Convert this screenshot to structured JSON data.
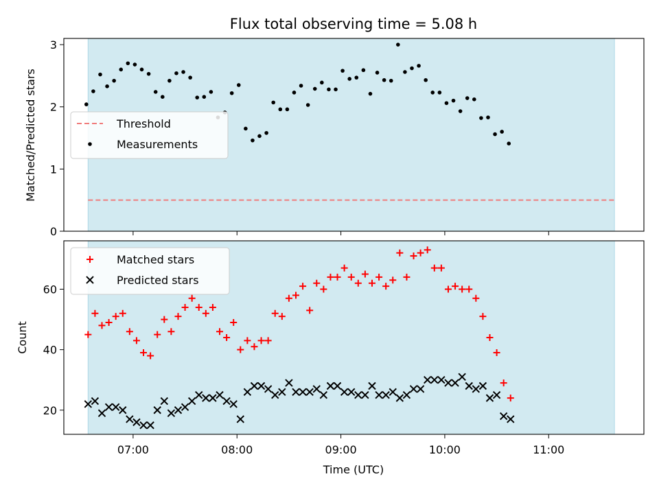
{
  "chart_data": [
    {
      "type": "scatter",
      "title": "Flux total observing time = 5.08 h",
      "ylabel": "Matched/Predicted stars",
      "xlabel": "",
      "ylim": [
        0,
        3.1
      ],
      "yticks": [
        0,
        1,
        2,
        3
      ],
      "xlim": [
        "06:20",
        "11:55"
      ],
      "xticks": [
        "07:00",
        "08:00",
        "09:00",
        "10:00",
        "11:00"
      ],
      "x_tick_labels_shown": false,
      "shaded_region": [
        "06:34",
        "11:38"
      ],
      "grid": false,
      "legend_position": "center-left",
      "threshold": {
        "name": "Threshold",
        "value": 0.5,
        "x_range": [
          "06:34",
          "11:38"
        ],
        "color": "#f07b7b",
        "style": "dashed"
      },
      "series": [
        {
          "name": "Measurements",
          "color": "#000000",
          "marker": "dot",
          "points": [
            [
              "06:33",
              2.04
            ],
            [
              "06:37",
              2.25
            ],
            [
              "06:41",
              2.52
            ],
            [
              "06:45",
              2.33
            ],
            [
              "06:49",
              2.42
            ],
            [
              "06:53",
              2.6
            ],
            [
              "06:57",
              2.7
            ],
            [
              "07:01",
              2.68
            ],
            [
              "07:05",
              2.6
            ],
            [
              "07:09",
              2.53
            ],
            [
              "07:13",
              2.24
            ],
            [
              "07:17",
              2.16
            ],
            [
              "07:21",
              2.42
            ],
            [
              "07:25",
              2.54
            ],
            [
              "07:29",
              2.56
            ],
            [
              "07:33",
              2.47
            ],
            [
              "07:37",
              2.15
            ],
            [
              "07:41",
              2.16
            ],
            [
              "07:45",
              2.24
            ],
            [
              "07:49",
              1.83
            ],
            [
              "07:53",
              1.91
            ],
            [
              "07:57",
              2.22
            ],
            [
              "08:01",
              2.35
            ],
            [
              "08:05",
              1.65
            ],
            [
              "08:09",
              1.46
            ],
            [
              "08:13",
              1.53
            ],
            [
              "08:17",
              1.58
            ],
            [
              "08:21",
              2.07
            ],
            [
              "08:25",
              1.96
            ],
            [
              "08:29",
              1.96
            ],
            [
              "08:33",
              2.23
            ],
            [
              "08:37",
              2.34
            ],
            [
              "08:41",
              2.03
            ],
            [
              "08:45",
              2.29
            ],
            [
              "08:49",
              2.39
            ],
            [
              "08:53",
              2.28
            ],
            [
              "08:57",
              2.28
            ],
            [
              "09:01",
              2.58
            ],
            [
              "09:05",
              2.45
            ],
            [
              "09:09",
              2.47
            ],
            [
              "09:13",
              2.59
            ],
            [
              "09:17",
              2.21
            ],
            [
              "09:21",
              2.55
            ],
            [
              "09:25",
              2.43
            ],
            [
              "09:29",
              2.42
            ],
            [
              "09:33",
              3.0
            ],
            [
              "09:37",
              2.56
            ],
            [
              "09:41",
              2.62
            ],
            [
              "09:45",
              2.66
            ],
            [
              "09:49",
              2.43
            ],
            [
              "09:53",
              2.23
            ],
            [
              "09:57",
              2.23
            ],
            [
              "10:01",
              2.06
            ],
            [
              "10:05",
              2.1
            ],
            [
              "10:09",
              1.93
            ],
            [
              "10:13",
              2.14
            ],
            [
              "10:17",
              2.12
            ],
            [
              "10:21",
              1.82
            ],
            [
              "10:25",
              1.83
            ],
            [
              "10:29",
              1.56
            ],
            [
              "10:33",
              1.6
            ],
            [
              "10:37",
              1.41
            ]
          ]
        }
      ]
    },
    {
      "type": "scatter",
      "title": "",
      "xlabel": "Time (UTC)",
      "ylabel": "Count",
      "ylim": [
        12,
        76
      ],
      "yticks": [
        20,
        40,
        60
      ],
      "xlim": [
        "06:20",
        "11:55"
      ],
      "xticks": [
        "07:00",
        "08:00",
        "09:00",
        "10:00",
        "11:00"
      ],
      "shaded_region": [
        "06:34",
        "11:38"
      ],
      "grid": false,
      "legend_position": "top-left",
      "series": [
        {
          "name": "Matched stars",
          "color": "#ff0000",
          "marker": "plus",
          "points": [
            [
              "06:34",
              45
            ],
            [
              "06:38",
              52
            ],
            [
              "06:42",
              48
            ],
            [
              "06:46",
              49
            ],
            [
              "06:50",
              51
            ],
            [
              "06:54",
              52
            ],
            [
              "06:58",
              46
            ],
            [
              "07:02",
              43
            ],
            [
              "07:06",
              39
            ],
            [
              "07:10",
              38
            ],
            [
              "07:14",
              45
            ],
            [
              "07:18",
              50
            ],
            [
              "07:22",
              46
            ],
            [
              "07:26",
              51
            ],
            [
              "07:30",
              54
            ],
            [
              "07:34",
              57
            ],
            [
              "07:38",
              54
            ],
            [
              "07:42",
              52
            ],
            [
              "07:46",
              54
            ],
            [
              "07:50",
              46
            ],
            [
              "07:54",
              44
            ],
            [
              "07:58",
              49
            ],
            [
              "08:02",
              40
            ],
            [
              "08:06",
              43
            ],
            [
              "08:10",
              41
            ],
            [
              "08:14",
              43
            ],
            [
              "08:18",
              43
            ],
            [
              "08:22",
              52
            ],
            [
              "08:26",
              51
            ],
            [
              "08:30",
              57
            ],
            [
              "08:34",
              58
            ],
            [
              "08:38",
              61
            ],
            [
              "08:42",
              53
            ],
            [
              "08:46",
              62
            ],
            [
              "08:50",
              60
            ],
            [
              "08:54",
              64
            ],
            [
              "08:58",
              64
            ],
            [
              "09:02",
              67
            ],
            [
              "09:06",
              64
            ],
            [
              "09:10",
              62
            ],
            [
              "09:14",
              65
            ],
            [
              "09:18",
              62
            ],
            [
              "09:22",
              64
            ],
            [
              "09:26",
              61
            ],
            [
              "09:30",
              63
            ],
            [
              "09:34",
              72
            ],
            [
              "09:38",
              64
            ],
            [
              "09:42",
              71
            ],
            [
              "09:46",
              72
            ],
            [
              "09:50",
              73
            ],
            [
              "09:54",
              67
            ],
            [
              "09:58",
              67
            ],
            [
              "10:02",
              60
            ],
            [
              "10:06",
              61
            ],
            [
              "10:10",
              60
            ],
            [
              "10:14",
              60
            ],
            [
              "10:18",
              57
            ],
            [
              "10:22",
              51
            ],
            [
              "10:26",
              44
            ],
            [
              "10:30",
              39
            ],
            [
              "10:34",
              29
            ],
            [
              "10:38",
              24
            ]
          ]
        },
        {
          "name": "Predicted stars",
          "color": "#000000",
          "marker": "x",
          "points": [
            [
              "06:34",
              22
            ],
            [
              "06:38",
              23
            ],
            [
              "06:42",
              19
            ],
            [
              "06:46",
              21
            ],
            [
              "06:50",
              21
            ],
            [
              "06:54",
              20
            ],
            [
              "06:58",
              17
            ],
            [
              "07:02",
              16
            ],
            [
              "07:06",
              15
            ],
            [
              "07:10",
              15
            ],
            [
              "07:14",
              20
            ],
            [
              "07:18",
              23
            ],
            [
              "07:22",
              19
            ],
            [
              "07:26",
              20
            ],
            [
              "07:30",
              21
            ],
            [
              "07:34",
              23
            ],
            [
              "07:38",
              25
            ],
            [
              "07:42",
              24
            ],
            [
              "07:46",
              24
            ],
            [
              "07:50",
              25
            ],
            [
              "07:54",
              23
            ],
            [
              "07:58",
              22
            ],
            [
              "08:02",
              17
            ],
            [
              "08:06",
              26
            ],
            [
              "08:10",
              28
            ],
            [
              "08:14",
              28
            ],
            [
              "08:18",
              27
            ],
            [
              "08:22",
              25
            ],
            [
              "08:26",
              26
            ],
            [
              "08:30",
              29
            ],
            [
              "08:34",
              26
            ],
            [
              "08:38",
              26
            ],
            [
              "08:42",
              26
            ],
            [
              "08:46",
              27
            ],
            [
              "08:50",
              25
            ],
            [
              "08:54",
              28
            ],
            [
              "08:58",
              28
            ],
            [
              "09:02",
              26
            ],
            [
              "09:06",
              26
            ],
            [
              "09:10",
              25
            ],
            [
              "09:14",
              25
            ],
            [
              "09:18",
              28
            ],
            [
              "09:22",
              25
            ],
            [
              "09:26",
              25
            ],
            [
              "09:30",
              26
            ],
            [
              "09:34",
              24
            ],
            [
              "09:38",
              25
            ],
            [
              "09:42",
              27
            ],
            [
              "09:46",
              27
            ],
            [
              "09:50",
              30
            ],
            [
              "09:54",
              30
            ],
            [
              "09:58",
              30
            ],
            [
              "10:02",
              29
            ],
            [
              "10:06",
              29
            ],
            [
              "10:10",
              31
            ],
            [
              "10:14",
              28
            ],
            [
              "10:18",
              27
            ],
            [
              "10:22",
              28
            ],
            [
              "10:26",
              24
            ],
            [
              "10:30",
              25
            ],
            [
              "10:34",
              18
            ],
            [
              "10:38",
              17
            ]
          ]
        }
      ]
    }
  ],
  "colors": {
    "shade": "#add8e6",
    "threshold": "#f07b7b",
    "matched": "#ff0000",
    "predicted": "#000000",
    "measurements": "#000000"
  }
}
